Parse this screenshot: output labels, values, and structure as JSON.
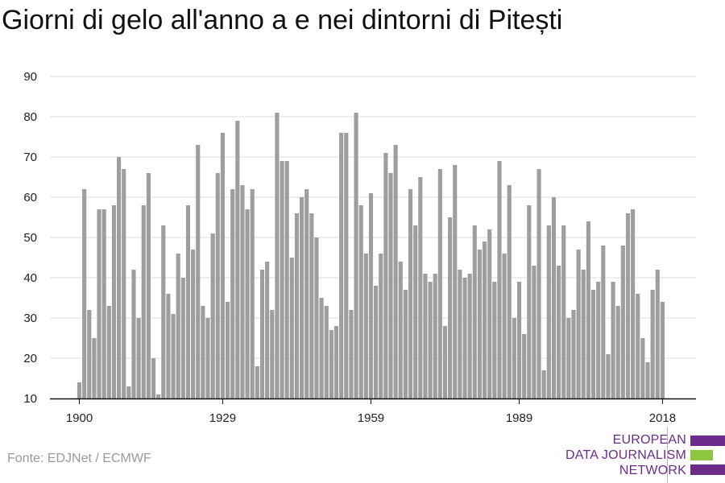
{
  "title": "Giorni di gelo all'anno a e nei dintorni di Pitești",
  "source": "Fonte: EDJNet / ECMWF",
  "logo": {
    "lines": [
      "EUROPEAN",
      "DATA JOURNALISM",
      "NETWORK"
    ],
    "colors": {
      "text": "#6b2c8a",
      "purple": "#6b2c8a",
      "green": "#8dc63f"
    }
  },
  "chart_data": {
    "type": "bar",
    "x": [
      1900,
      1901,
      1902,
      1903,
      1904,
      1905,
      1906,
      1907,
      1908,
      1909,
      1910,
      1911,
      1912,
      1913,
      1914,
      1915,
      1916,
      1917,
      1918,
      1919,
      1920,
      1921,
      1922,
      1923,
      1924,
      1925,
      1926,
      1927,
      1928,
      1929,
      1930,
      1931,
      1932,
      1933,
      1934,
      1935,
      1936,
      1937,
      1938,
      1939,
      1940,
      1941,
      1942,
      1943,
      1944,
      1945,
      1946,
      1947,
      1948,
      1949,
      1950,
      1951,
      1952,
      1953,
      1954,
      1955,
      1956,
      1957,
      1958,
      1959,
      1960,
      1961,
      1962,
      1963,
      1964,
      1965,
      1966,
      1967,
      1968,
      1969,
      1970,
      1971,
      1972,
      1973,
      1974,
      1975,
      1976,
      1977,
      1978,
      1979,
      1980,
      1981,
      1982,
      1983,
      1984,
      1985,
      1986,
      1987,
      1988,
      1989,
      1990,
      1991,
      1992,
      1993,
      1994,
      1995,
      1996,
      1997,
      1998,
      1999,
      2000,
      2001,
      2002,
      2003,
      2004,
      2005,
      2006,
      2007,
      2008,
      2009,
      2010,
      2011,
      2012,
      2013,
      2014,
      2015,
      2016,
      2017,
      2018
    ],
    "values": [
      14,
      62,
      32,
      25,
      57,
      57,
      33,
      58,
      70,
      67,
      13,
      42,
      30,
      58,
      66,
      20,
      11,
      53,
      36,
      31,
      46,
      40,
      58,
      47,
      73,
      33,
      30,
      51,
      66,
      76,
      34,
      62,
      79,
      63,
      57,
      62,
      18,
      42,
      44,
      32,
      81,
      69,
      69,
      45,
      56,
      60,
      62,
      56,
      50,
      35,
      33,
      27,
      28,
      76,
      76,
      32,
      81,
      58,
      46,
      61,
      38,
      46,
      71,
      66,
      73,
      44,
      37,
      62,
      53,
      65,
      41,
      39,
      41,
      67,
      28,
      55,
      68,
      42,
      40,
      41,
      53,
      47,
      49,
      52,
      39,
      69,
      46,
      63,
      30,
      39,
      26,
      58,
      43,
      67,
      17,
      53,
      60,
      43,
      53,
      30,
      32,
      47,
      42,
      54,
      37,
      39,
      48,
      21,
      39,
      33,
      48,
      56,
      57,
      36,
      25,
      19,
      37,
      42,
      34
    ],
    "xticks": [
      1900,
      1929,
      1959,
      1989,
      2018
    ],
    "yticks": [
      10,
      20,
      30,
      40,
      50,
      60,
      70,
      80,
      90
    ],
    "ylim": [
      10,
      90
    ],
    "grid": true,
    "bar_color": "#9e9e9e",
    "grid_color": "#dddddd",
    "axis_color": "#111111"
  }
}
